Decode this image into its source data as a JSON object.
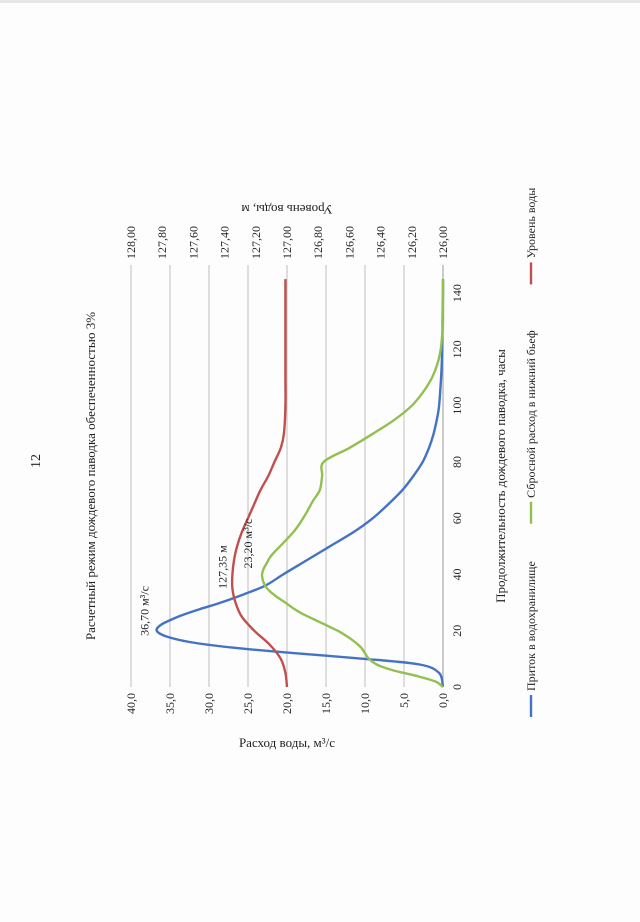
{
  "page_number": "12",
  "chart_data": {
    "type": "line",
    "title": "Расчетный режим дождевого паводка обеспеченностью 3%",
    "xlabel": "Продолжительность дождевого паводка, часы",
    "ylabel_left": "Расход воды, м³/с",
    "ylabel_right": "Уровень воды, м",
    "xlim": [
      0,
      150
    ],
    "xticks": [
      0,
      20,
      40,
      60,
      80,
      100,
      120,
      140
    ],
    "ylim_left": [
      0,
      40
    ],
    "yticks_left": [
      "0,0",
      "5,0",
      "10,0",
      "15,0",
      "20,0",
      "25,0",
      "30,0",
      "35,0",
      "40,0"
    ],
    "ylim_right": [
      126.0,
      128.0
    ],
    "yticks_right": [
      "126,00",
      "126,20",
      "126,40",
      "126,60",
      "126,80",
      "127,00",
      "127,20",
      "127,40",
      "127,60",
      "127,80",
      "128,00"
    ],
    "grid": true,
    "legend_position": "bottom",
    "series": [
      {
        "name": "Приток в водохранилище",
        "axis": "left",
        "color": "#4472c4",
        "x": [
          0,
          5,
          8,
          10,
          12,
          14,
          16,
          18,
          20,
          22,
          24,
          26,
          28,
          30,
          33,
          36,
          40,
          45,
          50,
          55,
          60,
          65,
          70,
          75,
          80,
          85,
          90,
          95,
          100,
          110,
          120,
          130,
          140,
          145
        ],
        "y": [
          0,
          0.5,
          3,
          10,
          19,
          27,
          32.5,
          35.5,
          36.7,
          36.2,
          34.8,
          33,
          30.8,
          28.5,
          25.5,
          22.8,
          20.5,
          17.5,
          14.5,
          11.5,
          9,
          7,
          5.2,
          3.8,
          2.6,
          1.8,
          1.2,
          0.8,
          0.5,
          0.25,
          0.1,
          0.05,
          0,
          0
        ]
      },
      {
        "name": "Сбросной расход в нижний бьеф",
        "axis": "left",
        "color": "#92c050",
        "x": [
          0,
          2,
          4,
          6,
          8,
          10,
          12,
          14,
          16,
          18,
          20,
          22,
          24,
          26,
          28,
          30,
          32,
          34,
          36,
          38,
          40,
          42,
          44,
          46,
          48,
          50,
          52,
          55,
          58,
          62,
          66,
          70,
          75,
          80,
          85,
          90,
          95,
          100,
          105,
          110,
          115,
          120,
          125,
          130,
          135,
          140,
          145
        ],
        "y": [
          0,
          1,
          3.5,
          6.5,
          8.5,
          9.5,
          10,
          10.5,
          11.3,
          12.3,
          13.5,
          15,
          16.5,
          18,
          19.2,
          20.2,
          21.3,
          22.2,
          22.8,
          23.1,
          23.2,
          23,
          22.6,
          22.2,
          21.6,
          20.9,
          20.2,
          19.2,
          18.4,
          17.5,
          16.7,
          15.8,
          15.5,
          15.3,
          12,
          9,
          6.2,
          4,
          2.5,
          1.4,
          0.7,
          0.3,
          0.1,
          0,
          0,
          0,
          0
        ]
      },
      {
        "name": "Уровень воды",
        "axis": "right",
        "color": "#c0504d",
        "x": [
          0,
          5,
          10,
          15,
          20,
          25,
          30,
          35,
          40,
          45,
          50,
          55,
          60,
          65,
          70,
          75,
          80,
          85,
          90,
          100,
          110,
          120,
          130,
          140,
          145
        ],
        "y": [
          127.0,
          127.01,
          127.04,
          127.11,
          127.21,
          127.29,
          127.33,
          127.35,
          127.35,
          127.34,
          127.32,
          127.29,
          127.25,
          127.21,
          127.17,
          127.12,
          127.08,
          127.04,
          127.02,
          127.01,
          127.01,
          127.01,
          127.01,
          127.01,
          127.01
        ]
      }
    ],
    "annotations": [
      {
        "text": "36,70 м³/с",
        "x": 21,
        "y": 36.7,
        "axis": "left"
      },
      {
        "text": "127,35 м",
        "x": 37,
        "y": 127.35,
        "axis": "right"
      },
      {
        "text": "23,20 м³/с",
        "x": 40,
        "y": 23.2,
        "axis": "left"
      }
    ]
  }
}
